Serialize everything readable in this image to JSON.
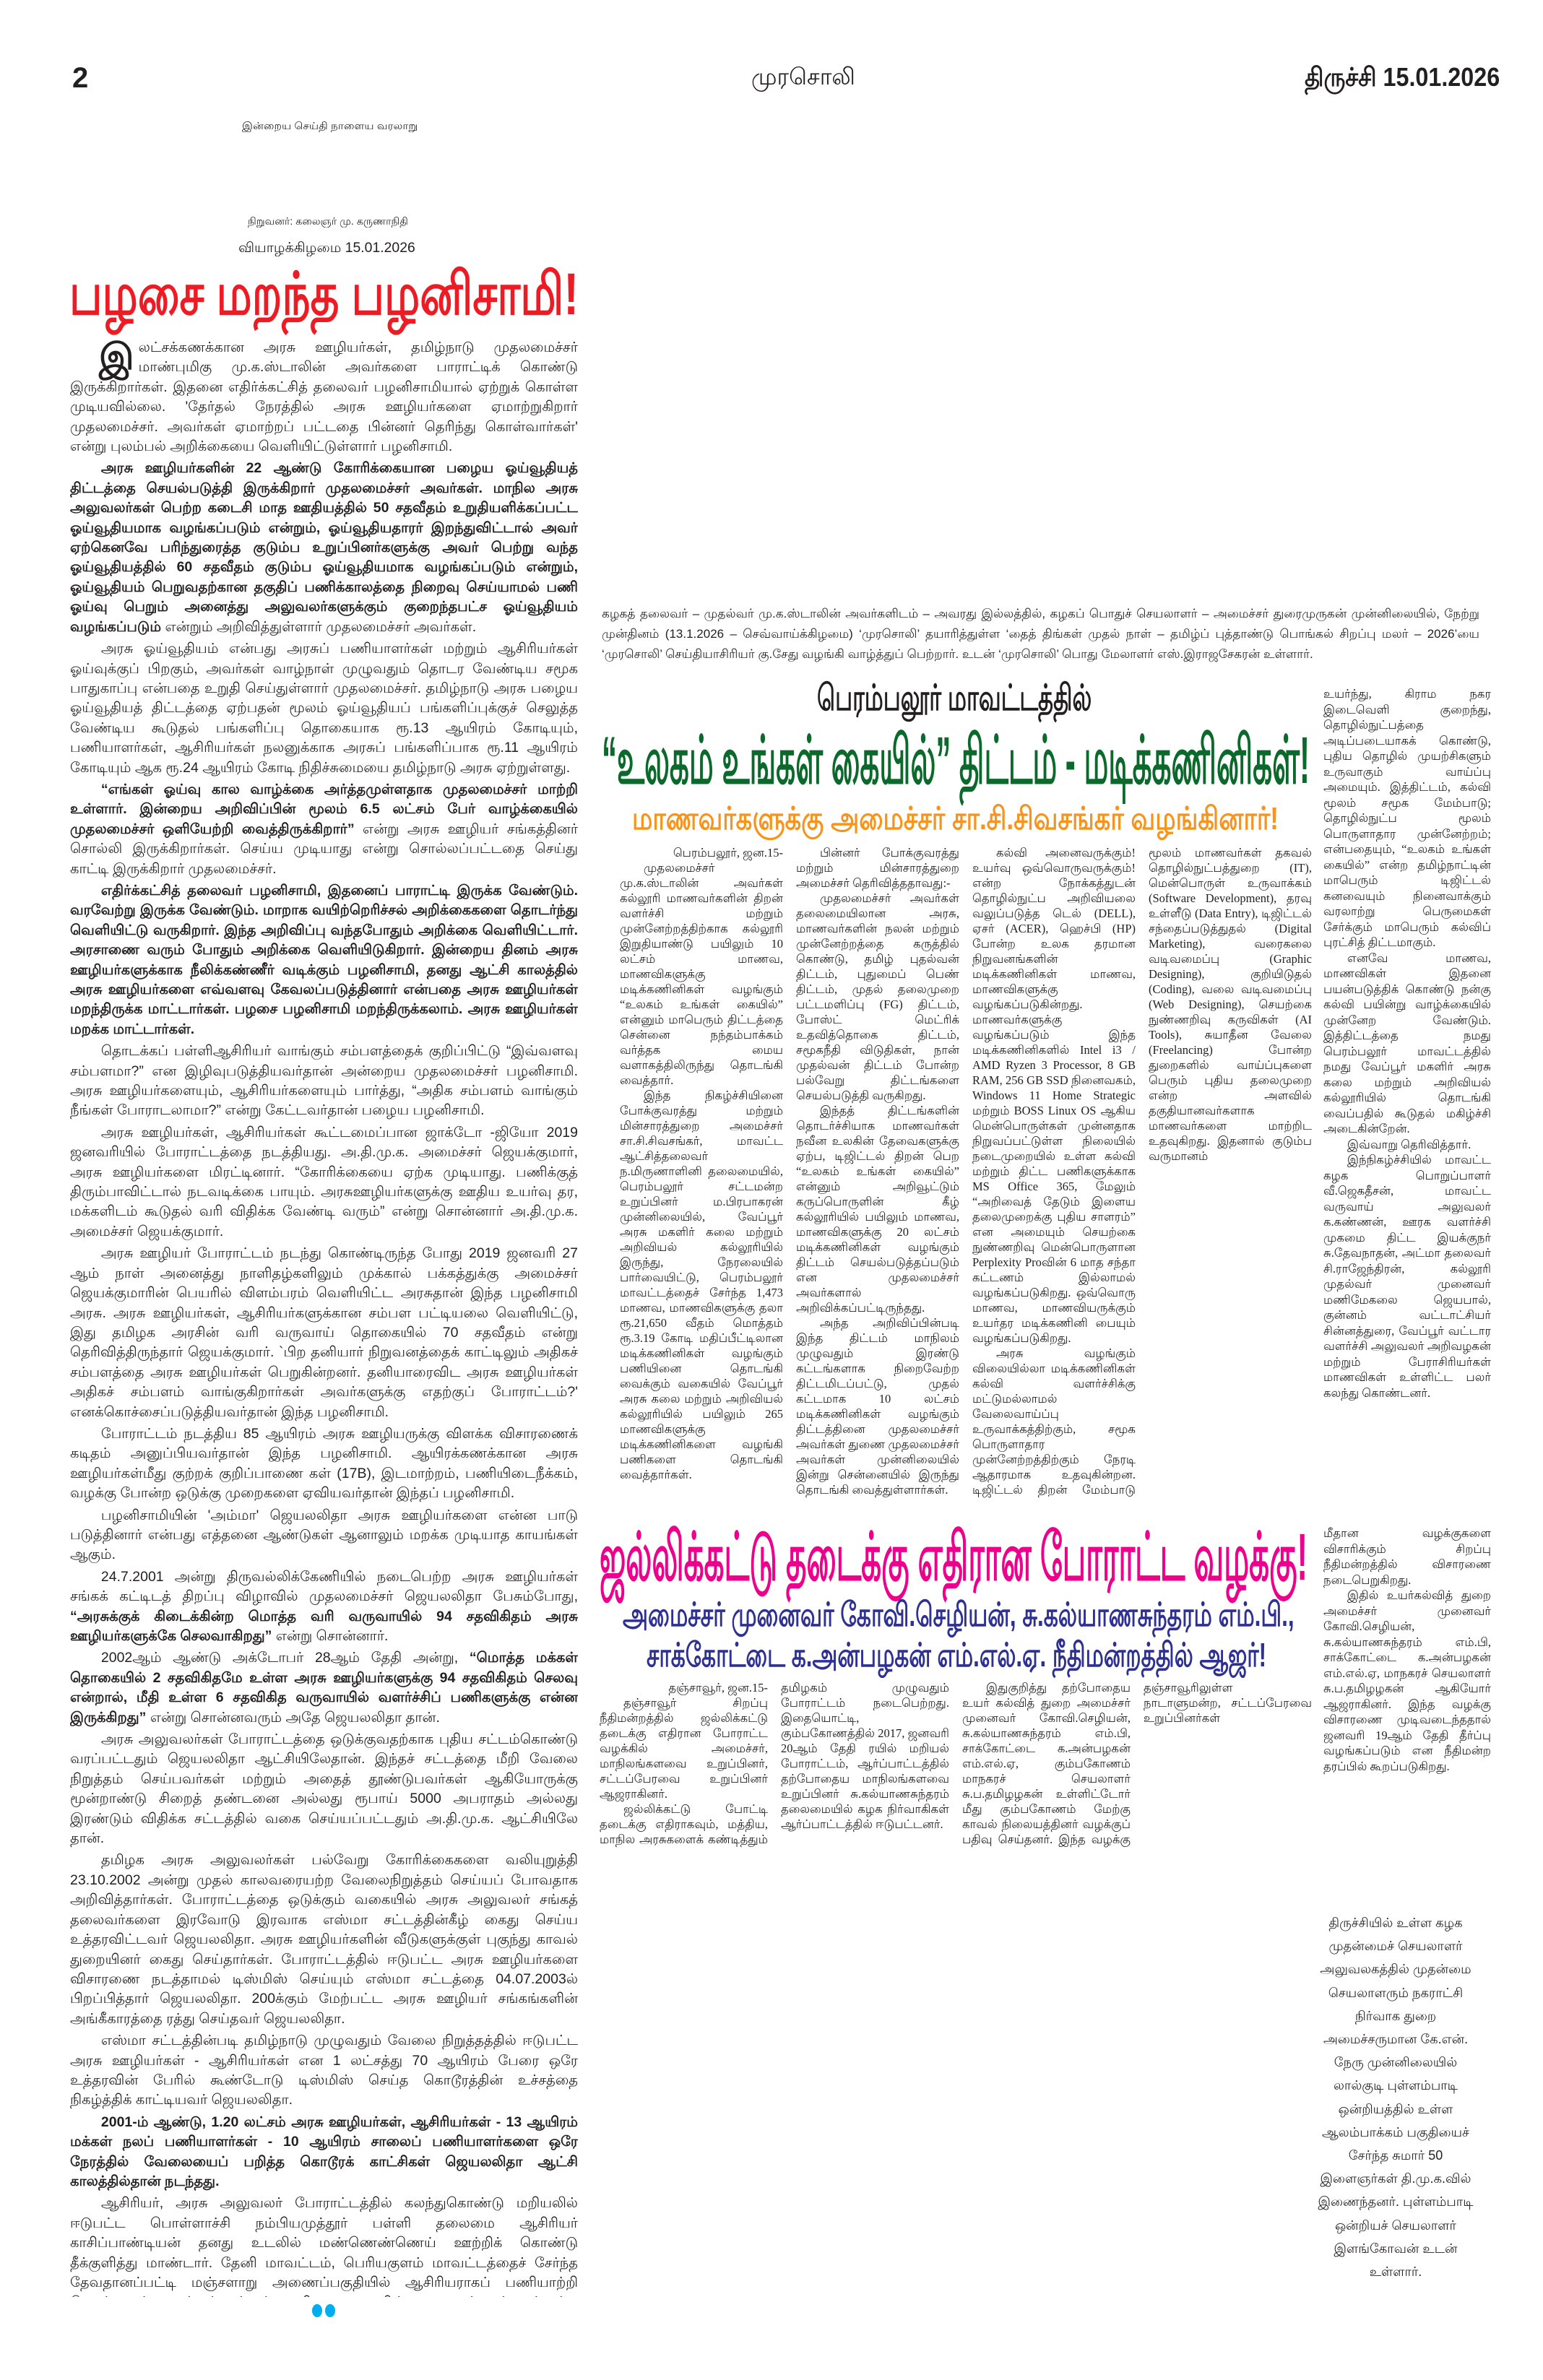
{
  "masthead": {
    "page_number": "2",
    "paper_name": "முரசொலி",
    "edition_date": "திருச்சி 15.01.2026",
    "motto": "இன்றைய செய்தி நாளைய வரலாறு",
    "founder": "நிறுவனர்: கலைஞர் மு. கருணாநிதி",
    "day_date": "வியாழக்கிழமை 15.01.2026"
  },
  "colors": {
    "lead_headline": "#ed1c24",
    "perambalur_headline": "#0b6a2b",
    "perambalur_sub": "#f7941d",
    "jallikattu_headline": "#ec008c",
    "jallikattu_sub": "#2e3192",
    "end_dots": "#00aeef"
  },
  "editorial": {
    "headline": "பழசை மறந்த பழனிசாமி!",
    "dropcap": "இ",
    "paragraphs": [
      [
        {
          "text": "லட்சக்கணக்கான அரசு ஊழியர்கள், தமிழ்நாடு முதலமைச்சர் மாண்புமிகு மு.க.ஸ்டாலின் அவர்களை பாராட்டிக் கொண்டு இருக்கிறார்கள். இதனை எதிர்க்கட்சித் தலைவர் பழனிசாமியால் ஏற்றுக் கொள்ள முடியவில்லை. 'தேர்தல் நேரத்தில் அரசு ஊழியர்களை ஏமாற்றுகிறார் முதலமைச்சர். அவர்கள் ஏமாற்றப் பட்டதை பின்னர் தெரிந்து கொள்வார்கள்' என்று புலம்பல் அறிக்கையை வெளியிட்டுள்ளார் பழனிசாமி.",
          "bold": false
        }
      ],
      [
        {
          "text": "அரசு ஊழியர்களின் 22 ஆண்டு கோரிக்கையான பழைய ஓய்வூதியத் திட்டத்தை செயல்படுத்தி இருக்கிறார் முதலமைச்சர் அவர்கள். மாநில அரசு அலுவலர்கள் பெற்ற கடைசி மாத ஊதியத்தில் 50 சதவீதம் உறுதியளிக்கப்பட்ட ஓய்வூதியமாக வழங்கப்படும் என்றும், ஓய்வூதியதாரர் இறந்துவிட்டால் அவர் ஏற்கெனவே பரிந்துரைத்த குடும்ப உறுப்பினர்களுக்கு அவர் பெற்று வந்த ஓய்வூதியத்தில் 60 சதவீதம் குடும்ப ஓய்வூதியமாக வழங்கப்படும் என்றும், ஓய்வூதியம் பெறுவதற்கான தகுதிப் பணிக்காலத்தை நிறைவு செய்யாமல் பணி ஓய்வு பெறும் அனைத்து அலுவலர்களுக்கும் குறைந்தபட்ச ஓய்வூதியம் வழங்கப்படும்",
          "bold": true
        },
        {
          "text": " என்றும் அறிவித்துள்ளார் முதலமைச்சர் அவர்கள்.",
          "bold": false
        }
      ],
      [
        {
          "text": "அரசு ஓய்வூதியம் என்பது அரசுப் பணியாளர்கள் மற்றும் ஆசிரியர்கள் ஓய்வுக்குப் பிறகும், அவர்கள் வாழ்நாள் முழுவதும் தொடர வேண்டிய சமூக பாதுகாப்பு என்பதை உறுதி செய்துள்ளார் முதலமைச்சர். தமிழ்நாடு அரசு பழைய ஓய்வூதியத் திட்டத்தை ஏற்பதன் மூலம் ஓய்வூதியப் பங்களிப்புக்குச் செலுத்த வேண்டிய கூடுதல் பங்களிப்பு தொகையாக ரூ.13 ஆயிரம் கோடியும், பணியாளர்கள், ஆசிரியர்கள் நலனுக்காக அரசுப் பங்களிப்பாக ரூ.11 ஆயிரம் கோடியும் ஆக ரூ.24 ஆயிரம் கோடி நிதிச்சுமையை தமிழ்நாடு அரசு ஏற்றுள்ளது.",
          "bold": false
        }
      ],
      [
        {
          "text": "“எங்கள் ஓய்வு கால வாழ்க்கை அர்த்தமுள்ளதாக முதலமைச்சர் மாற்றி உள்ளார். இன்றைய அறிவிப்பின் மூலம் 6.5 லட்சம் பேர் வாழ்க்கையில் முதலமைச்சர் ஒளியேற்றி வைத்திருக்கிறார்”",
          "bold": true
        },
        {
          "text": " என்று அரசு ஊழியர் சங்கத்தினர் சொல்லி இருக்கிறார்கள். செய்ய முடியாது என்று சொல்லப்பட்டதை செய்து காட்டி இருக்கிறார் முதலமைச்சர்.",
          "bold": false
        }
      ],
      [
        {
          "text": "எதிர்க்கட்சித் தலைவர் பழனிசாமி, இதனைப் பாராட்டி இருக்க வேண்டும். வரவேற்று இருக்க வேண்டும். மாறாக வயிற்றெரிச்சல் அறிக்கைகளை தொடர்ந்து வெளியிட்டு வருகிறார். இந்த அறிவிப்பு வந்தபோதும் அறிக்கை வெளியிட்டார். அரசாணை வரும் போதும் அறிக்கை வெளியிடுகிறார். இன்றைய தினம் அரசு ஊழியர்களுக்காக நீலிக்கண்ணீர் வடிக்கும் பழனிசாமி, தனது ஆட்சி காலத்தில் அரசு ஊழியர்களை எவ்வளவு கேவலப்படுத்தினார் என்பதை அரசு ஊழியர்கள் மறந்திருக்க மாட்டார்கள். பழசை பழனிசாமி மறந்திருக்கலாம். அரசு ஊழியர்கள் மறக்க மாட்டார்கள்.",
          "bold": true
        }
      ],
      [
        {
          "text": "தொடக்கப் பள்ளிஆசிரியர் வாங்கும் சம்பளத்தைக் குறிப்பிட்டு “இவ்வளவு சம்பளமா?” என இழிவுபடுத்தியவர்தான் அன்றைய முதலமைச்சர் பழனிசாமி. அரசு ஊழியர்களையும், ஆசிரியர்களையும் பார்த்து, “அதிக சம்பளம் வாங்கும் நீங்கள் போராடலாமா?” என்று கேட்டவர்தான் பழைய பழனிசாமி.",
          "bold": false
        }
      ],
      [
        {
          "text": "அரசு ஊழியர்கள், ஆசிரியர்கள் கூட்டமைப்பான ஜாக்டோ -ஜியோ 2019 ஜனவரியில் போராட்டத்தை நடத்தியது. அ.தி.மு.க. அமைச்சர் ஜெயக்குமார், அரசு ஊழியர்களை மிரட்டினார். “கோரிக்கையை ஏற்க முடியாது. பணிக்குத் திரும்பாவிட்டால் நடவடிக்கை பாயும். அரசுஊழியர்களுக்கு ஊதிய உயர்வு தர, மக்களிடம் கூடுதல் வரி விதிக்க வேண்டி வரும்” என்று சொன்னார் அ.தி.மு.க. அமைச்சர் ஜெயக்குமார்.",
          "bold": false
        }
      ],
      [
        {
          "text": "அரசு ஊழியர் போராட்டம் நடந்து கொண்டிருந்த போது 2019 ஜனவரி 27 ஆம் நாள் அனைத்து நாளிதழ்களிலும் முக்கால் பக்கத்துக்கு அமைச்சர் ஜெயக்குமாரின் பெயரில் விளம்பரம் வெளியிட்ட அரசுதான் இந்த பழனிசாமி அரசு. அரசு ஊழியர்கள், ஆசிரியர்களுக்கான சம்பள பட்டியலை வெளியிட்டு, இது தமிழக அரசின் வரி வருவாய் தொகையில் 70 சதவீதம் என்று தெரிவித்திருந்தார் ஜெயக்குமார். `பிற தனியார் நிறுவனத்தைக் காட்டிலும் அதிகச் சம்பளத்தை அரசு ஊழியர்கள் பெறுகின்றனர். தனியாரைவிட அரசு ஊழியர்கள் அதிகச் சம்பளம் வாங்குகிறார்கள் அவர்களுக்கு எதற்குப் போராட்டம்?' எனக்கொச்சைப்படுத்தியவர்தான் இந்த பழனிசாமி.",
          "bold": false
        }
      ],
      [
        {
          "text": "போராட்டம் நடத்திய 85 ஆயிரம் அரசு ஊழியருக்கு விளக்க விசாரணைக் கடிதம் அனுப்பியவர்தான் இந்த பழனிசாமி. ஆயிரக்கணக்கான அரசு ஊழியர்கள்மீது குற்றக் குறிப்பாணை கள் (17B), இடமாற்றம், பணியிடைநீக்கம், வழக்கு போன்ற ஒடுக்கு முறைகளை ஏவியவர்தான் இந்தப் பழனிசாமி.",
          "bold": false
        }
      ],
      [
        {
          "text": "பழனிசாமியின் 'அம்மா' ஜெயலலிதா அரசு ஊழியர்களை என்ன பாடு படுத்தினார் என்பது எத்தனை ஆண்டுகள் ஆனாலும் மறக்க முடியாத காயங்கள் ஆகும்.",
          "bold": false
        }
      ],
      [
        {
          "text": "24.7.2001 அன்று திருவல்லிக்கேணியில் நடைபெற்ற அரசு ஊழியர்கள் சங்கக் கட்டிடத் திறப்பு விழாவில் முதலமைச்சர் ஜெயலலிதா பேசும்போது, ",
          "bold": false
        },
        {
          "text": "“அரசுக்குக் கிடைக்கின்ற மொத்த வரி வருவாயில் 94 சதவிகிதம் அரசு ஊழியர்களுக்கே செலவாகிறது”",
          "bold": true
        },
        {
          "text": " என்று சொன்னார்.",
          "bold": false
        }
      ],
      [
        {
          "text": "2002ஆம் ஆண்டு அக்டோபர் 28ஆம் தேதி அன்று, ",
          "bold": false
        },
        {
          "text": "“மொத்த மக்கள் தொகையில் 2 சதவிகிதமே உள்ள அரசு ஊழியர்களுக்கு 94 சதவிகிதம் செலவு என்றால், மீதி உள்ள 6 சதவிகித வருவாயில் வளர்ச்சிப் பணிகளுக்கு என்ன இருக்கிறது”",
          "bold": true
        },
        {
          "text": " என்று சொன்னவரும் அதே ஜெயலலிதா தான்.",
          "bold": false
        }
      ],
      [
        {
          "text": "அரசு அலுவலர்கள் போராட்டத்தை ஒடுக்குவதற்காக புதிய சட்டம்கொண்டு வரப்பட்டதும் ஜெயலலிதா ஆட்சியிலேதான். இந்தச் சட்டத்தை மீறி வேலை நிறுத்தம் செய்பவர்கள் மற்றும் அதைத் தூண்டுபவர்கள் ஆகியோருக்கு மூன்றாண்டு சிறைத் தண்டனை அல்லது ரூபாய் 5000 அபராதம் அல்லது இரண்டும் விதிக்க சட்டத்தில் வகை செய்யப்பட்டதும் அ.தி.மு.க. ஆட்சியிலே தான்.",
          "bold": false
        }
      ],
      [
        {
          "text": "தமிழக அரசு அலுவலர்கள் பல்வேறு கோரிக்கைகளை வலியுறுத்தி 23.10.2002 அன்று முதல் காலவரையற்ற வேலைநிறுத்தம் செய்யப் போவதாக அறிவித்தார்கள். போராட்டத்தை ஒடுக்கும் வகையில் அரசு அலுவலர் சங்கத் தலைவர்களை இரவோடு இரவாக எஸ்மா சட்டத்தின்கீழ் கைது செய்ய உத்தரவிட்டவர் ஜெயலலிதா. அரசு ஊழியர்களின் வீடுகளுக்குள் புகுந்து காவல் துறையினர் கைது செய்தார்கள். போராட்டத்தில் ஈடுபட்ட அரசு ஊழியர்களை விசாரணை நடத்தாமல் டிஸ்மிஸ் செய்யும் எஸ்மா சட்டத்தை 04.07.2003ல் பிறப்பித்தார் ஜெயலலிதா. 200க்கும் மேற்பட்ட அரசு ஊழியர் சங்கங்களின் அங்கீகாரத்தை ரத்து செய்தவர் ஜெயலலிதா.",
          "bold": false
        }
      ],
      [
        {
          "text": "எஸ்மா சட்டத்தின்படி தமிழ்நாடு முழுவதும் வேலை நிறுத்தத்தில் ஈடுபட்ட அரசு ஊழியர்கள் - ஆசிரியர்கள் என 1 லட்சத்து 70 ஆயிரம் பேரை ஒரே உத்தரவின் பேரில் கூண்டோடு டிஸ்மிஸ் செய்த கொடூரத்தின் உச்சத்தை நிகழ்த்திக் காட்டியவர் ஜெயலலிதா.",
          "bold": false
        }
      ],
      [
        {
          "text": "2001-ம் ஆண்டு, 1.20 லட்சம் அரசு ஊழியர்கள், ஆசிரியர்கள் - 13 ஆயிரம் மக்கள் நலப் பணியாளர்கள் - 10 ஆயிரம் சாலைப் பணியாளர்களை ஒரே நேரத்தில் வேலையைப் பறித்த கொடூரக் காட்சிகள் ஜெயலலிதா ஆட்சி காலத்தில்தான் நடந்தது.",
          "bold": true
        }
      ],
      [
        {
          "text": "ஆசிரியர், அரசு அலுவலர் போராட்டத்தில் கலந்துகொண்டு மறியலில் ஈடுபட்ட பொள்ளாச்சி நம்பியமுத்தூர் பள்ளி தலைமை ஆசிரியர் காசிப்பாண்டியன் தனது உடலில் மண்ணெண்ணெய் ஊற்றிக் கொண்டு தீக்குளித்து மாண்டார். தேனி மாவட்டம், பெரியகுளம் மாவட்டத்தைச் சேர்ந்த தேவதானப்பட்டி மஞ்சளாறு அணைப்பகுதியில் ஆசிரியராகப் பணியாற்றி கொண்டிருந்த அப்துல் சத்தார் அ.தி.மு.க. அரசின் அராஜகத்தைக் கண்டித்து தற்கொலை செய்து கொண்டார். இவை எல்லாம் ஜெயலலிதா ஆட்சி காலத்து நிகழ்வுகள் ஆகும்.",
          "bold": false
        }
      ],
      [
        {
          "text": "இப்படி அரசு ஊழியர்களை வேட்டையாடிய ஆட்சிதான் அ.தி.மு.க. ஆட்சியாகும்.",
          "bold": true
        }
      ]
    ]
  },
  "photo_caption": "கழகத் தலைவர் – முதல்வர் மு.க.ஸ்டாலின் அவர்களிடம் – அவரது இல்லத்தில், கழகப் பொதுச் செயலாளர் – அமைச்சர் துரைமுருகன் முன்னிலையில், நேற்று முன்தினம் (13.1.2026 – செவ்வாய்க்கிழமை) ‘முரசொலி’ தயாரித்துள்ள ‘தைத் திங்கள் முதல் நாள் – தமிழ்ப் புத்தாண்டு பொங்கல் சிறப்பு மலர் – 2026’யை ‘முரசொலி’ செய்தியாசிரியர் கு.சேது வழங்கி வாழ்த்துப் பெற்றார். உடன் ‘முரசொலி’ பொது மேலாளர் எஸ்.இராஜசேகரன் உள்ளார்.",
  "perambalur": {
    "kicker": "பெரம்பலூர் மாவட்டத்தில்",
    "headline": "“உலகம் உங்கள் கையில்” திட்டம் - மடிக்கணினிகள்!",
    "subheadline": "மாணவர்களுக்கு அமைச்சர் சா.சி.சிவசங்கர் வழங்கினார்!",
    "dateline": "பெரம்பலூர், ஜன.15-",
    "body": [
      "முதலமைச்சர் மு.க.ஸ்டாலின் அவர்கள் கல்லூரி மாணவர்களின் திறன் வளர்ச்சி மற்றும் முன்னேற்றத்திற்காக கல்லூரி இறுதியாண்டு பயிலும் 10 லட்சம் மாணவ, மாணவிகளுக்கு மடிக்கணினிகள் வழங்கும் “உலகம் உங்கள் கையில்” என்னும் மாபெரும் திட்டத்தை சென்னை நந்தம்பாக்கம் வர்த்தக மைய வளாகத்திலிருந்து தொடங்கி வைத்தார்.",
      "இந்த நிகழ்ச்சியினை போக்குவரத்து மற்றும் மின்சாரத்துறை அமைச்சர் சா.சி.சிவசங்கர், மாவட்ட ஆட்சித்தலைவர் ந.மிருணாளினி தலைமையில், பெரம்பலூர் சட்டமன்ற உறுப்பினர் ம.பிரபாகரன் முன்னிலையில், வேப்பூர் அரசு மகளிர் கலை மற்றும் அறிவியல் கல்லூரியில் இருந்து, நேரலையில் பார்வையிட்டு, பெரம்பலூர் மாவட்டத்தைச் சேர்ந்த 1,473 மாணவ, மாணவிகளுக்கு தலா ரூ.21,650 வீதம் மொத்தம் ரூ.3.19 கோடி மதிப்பீட்டிலான மடிக்கணினிகள் வழங்கும் பணியினை தொடங்கி வைக்கும் வகையில் வேப்பூர் அரசு கலை மற்றும் அறிவியல் கல்லூரியில் பயிலும் 265 மாணவிகளுக்கு மடிக்கணினிகளை வழங்கி பணிகளை தொடங்கி வைத்தார்கள்.",
      "பின்னர் போக்குவரத்து மற்றும் மின்சாரத்துறை அமைச்சர் தெரிவித்ததாவது:-",
      "முதலமைச்சர் அவர்கள் தலைமையிலான அரசு, மாணவர்களின் நலன் மற்றும் முன்னேற்றத்தை கருத்தில் கொண்டு, தமிழ் புதல்வன் திட்டம், புதுமைப் பெண் திட்டம், முதல் தலைமுறை பட்டமளிப்பு (FG) திட்டம், போஸ்ட் மெட்ரிக் உதவித்தொகை திட்டம், சமூகநீதி விடுதிகள், நான் முதல்வன் திட்டம் போன்ற பல்வேறு திட்டங்களை செயல்படுத்தி வருகிறது.",
      "இந்தத் திட்டங்களின் தொடர்ச்சியாக மாணவர்கள் நவீன உலகின் தேவைகளுக்கு ஏற்ப, டிஜிட்டல் திறன் பெற “உலகம் உங்கள் கையில்” என்னும் அறிவூட்டும் கருப்பொருளின் கீழ் கல்லூரியில் பயிலும் மாணவ, மாணவிகளுக்கு 20 லட்சம் மடிக்கணினிகள் வழங்கும் திட்டம் செயல்படுத்தப்படும் என முதலமைச்சர் அவர்களால் அறிவிக்கப்பட்டிருந்தது.",
      "அந்த அறிவிப்பின்படி இந்த திட்டம் மாநிலம் முழுவதும் இரண்டு கட்டங்களாக நிறைவேற்ற திட்டமிடப்பட்டு, முதல் கட்டமாக 10 லட்சம் மடிக்கணினிகள் வழங்கும் திட்டத்தினை முதலமைச்சர் அவர்கள் துணை முதலமைச்சர் அவர்கள் முன்னிலையில் இன்று சென்னையில் இருந்து தொடங்கி வைத்துள்ளார்கள்.",
      "கல்வி அனைவருக்கும்! உயர்வு ஒவ்வொருவருக்கும்! என்ற நோக்கத்துடன் தொழில்நுட்ப அறிவியலை வலுப்படுத்த டெல் (DELL), ஏசர் (ACER), ஹெச்பி (HP) போன்ற உலக தரமான நிறுவனங்களின் மடிக்கணினிகள் மாணவ, மாணவிகளுக்கு வழங்கப்படுகின்றது. மாணவர்களுக்கு வழங்கப்படும் இந்த மடிக்கணினிகளில் Intel i3 / AMD Ryzen 3 Processor, 8 GB RAM, 256 GB SSD நினைவகம், Windows 11 Home Strategic மற்றும் BOSS Linux OS ஆகிய மென்பொருள்கள் முன்னதாக நிறுவப்பட்டுள்ள நிலையில் நடைமுறையில் உள்ள கல்வி மற்றும் திட்ட பணிகளுக்காக MS Office 365, மேலும் “அறிவைத் தேடும் இளைய தலைமுறைக்கு புதிய சாளரம்” என அமையும் செயற்கை நுண்ணறிவு மென்பொருளான Perplexity Proவின் 6 மாத சந்தா கட்டணம் இல்லாமல் வழங்கப்படுகிறது. ஒவ்வொரு மாணவ, மாணவியருக்கும் உயர்தர மடிக்கணினி பையும் வழங்கப்படுகிறது.",
      "அரசு வழங்கும் விலையில்லா மடிக்கணினிகள் கல்வி வளர்ச்சிக்கு மட்டுமல்லாமல் வேலைவாய்ப்பு உருவாக்கத்திற்கும், சமூக பொருளாதார முன்னேற்றத்திற்கும் நேரடி ஆதாரமாக உதவுகின்றன. டிஜிட்டல் திறன் மேம்பாடு மூலம் மாணவர்கள் தகவல் தொழில்நுட்பத்துறை (IT), மென்பொருள் உருவாக்கம் (Software Development), தரவு உள்ளீடு (Data Entry), டிஜிட்டல் சந்தைப்படுத்துதல் (Digital Marketing), வரைகலை வடிவமைப்பு (Graphic Designing), குறியிடுதல் (Coding), வலை வடிவமைப்பு (Web Designing), செயற்கை நுண்ணறிவு கருவிகள் (AI Tools), சுயாதீன வேலை (Freelancing) போன்ற துறைகளில் வாய்ப்புகளை பெரும் புதிய தலைமுறை என்ற அளவில் தகுதியானவர்களாக மாணவர்களை மாற்றிட உதவுகிறது. இதனால் குடும்ப வருமானம்"
    ],
    "right_column": [
      "உயர்ந்து, கிராம நகர இடைவெளி குறைந்து, தொழில்நுட்பத்தை அடிப்படையாகக் கொண்டு, புதிய தொழில் முயற்சிகளும் உருவாகும் வாய்ப்பு அமையும். இத்திட்டம், கல்வி மூலம் சமூக மேம்பாடு; தொழில்நுட்ப மூலம் பொருளாதார முன்னேற்றம்; என்பதையும், “உலகம் உங்கள் கையில்” என்ற தமிழ்நாட்டின் மாபெரும் டிஜிட்டல் கனவையும் நினைவாக்கும் வரலாற்று பெருமைகள் சேர்க்கும் மாபெரும் கல்விப் புரட்சித் திட்டமாகும்.",
      "எனவே மாணவ, மாணவிகள் இதனை பயன்படுத்திக் கொண்டு நன்கு கல்வி பயின்று வாழ்க்கையில் முன்னேற வேண்டும். இத்திட்டத்தை நமது பெரம்பலூர் மாவட்டத்தில் நமது வேப்பூர் மகளிர் அரசு கலை மற்றும் அறிவியல் கல்லூரியில் தொடங்கி வைப்பதில் கூடுதல் மகிழ்ச்சி அடைகின்றேன்.",
      "இவ்வாறு தெரிவித்தார்.",
      "இந்நிகழ்ச்சியில் மாவட்ட கழக பொறுப்பாளர் வீ.ஜெகதீசன், மாவட்ட வருவாய் அலுவலர் க.கண்ணன், ஊரக வளர்ச்சி முகமை திட்ட இயக்குநர் சு.தேவநாதன், அட்மா தலைவர் சி.ராஜேந்திரன், கல்லூரி முதல்வர் முனைவர் மணிமேகலை ஜெயபால், குன்னம் வட்டாட்சியர் சின்னத்துரை, வேப்பூர் வட்டார வளர்ச்சி அலுவலர் அறிவழகன் மற்றும் பேராசிரியர்கள் மாணவிகள் உள்ளிட்ட பலர் கலந்து கொண்டனர்."
    ]
  },
  "jallikattu": {
    "headline": "ஜல்லிக்கட்டு தடைக்கு எதிரான போராட்ட வழக்கு!",
    "subheadline_1": "அமைச்சர் முனைவர் கோவி.செழியன், சு.கல்யாணசுந்தரம் எம்.பி.,",
    "subheadline_2": "சாக்கோட்டை க.அன்பழகன் எம்.எல்.ஏ. நீதிமன்றத்தில் ஆஜர்!",
    "dateline": "தஞ்சாவூர், ஜன.15-",
    "body": [
      "தஞ்சாவூர் சிறப்பு நீதிமன்றத்தில் ஜல்லிக்கட்டு தடைக்கு எதிரான போராட்ட வழக்கில் அமைச்சர், மாநிலங்களவை உறுப்பினர், சட்டப்பேரவை உறுப்பினர் ஆஜராகினர்.",
      "ஜல்லிக்கட்டு போட்டி தடைக்கு எதிராகவும், மத்திய, மாநில அரசுகளைக் கண்டித்தும் தமிழகம் முழுவதும் போராட்டம் நடைபெற்றது. இதையொட்டி, கும்பகோணத்தில் 2017, ஜனவரி 20ஆம் தேதி ரயில் மறியல் போராட்டம், ஆர்ப்பாட்டத்தில் தற்போதைய மாநிலங்களவை உறுப்பினர் சு.கல்யாணசுந்தரம் தலைமையில் கழக நிர்வாகிகள் ஆர்ப்பாட்டத்தில் ஈடுபட்டனர்.",
      "இதுகுறித்து தற்போதைய உயர் கல்வித் துறை அமைச்சர் முனைவர் கோவி.செழியன், சு.கல்யாணசுந்தரம் எம்.பி, சாக்கோட்டை க.அன்பழகன் எம்.எல்.ஏ, கும்பகோணம் மாநகரச் செயலாளர் சு.ப.தமிழழகன் உள்ளிட்டோர் மீது கும்பகோணம் மேற்கு காவல் நிலையத்தினர் வழக்குப் பதிவு செய்தனர். இந்த வழக்கு தஞ்சாவூரிலுள்ள நாடாளுமன்ற, சட்டப்பேரவை உறுப்பினர்கள்"
    ],
    "right_column": [
      "மீதான வழக்குகளை விசாரிக்கும் சிறப்பு நீதிமன்றத்தில் விசாரணை நடைபெறுகிறது.",
      "இதில் உயர்கல்வித் துறை அமைச்சர் முனைவர் கோவி.செழியன், சு.கல்யாணசுந்தரம் எம்.பி, சாக்கோட்டை க.அன்பழகன் எம்.எல்.ஏ, மாநகரச் செயலாளர் சு.ப.தமிழழகன் ஆகியோர் ஆஜராகினர். இந்த வழக்கு விசாரணை முடிவடைந்ததால் ஜனவரி 19ஆம் தேதி தீர்ப்பு வழங்கப்படும் என நீதிமன்ற தரப்பில் கூறப்படுகிறது."
    ]
  },
  "joining_caption": {
    "lines": [
      "திருச்சியில் உள்ள கழக",
      "முதன்மைச் செயலாளர்",
      "அலுவலகத்தில் முதன்மை",
      "செயலாளரும் நகராட்சி",
      "நிர்வாக துறை",
      "அமைச்சருமான கே.என்.",
      "நேரு முன்னிலையில்",
      "லால்குடி புள்ளம்பாடி",
      "ஒன்றியத்தில் உள்ள",
      "ஆலம்பாக்கம் பகுதியைச்",
      "சேர்ந்த சுமார் 50",
      "இளைஞர்கள் தி.மு.க.வில்",
      "இணைந்தனர். புள்ளம்பாடி",
      "ஒன்றியச் செயலாளர்",
      "இளங்கோவன் உடன்",
      "உள்ளார்."
    ]
  }
}
